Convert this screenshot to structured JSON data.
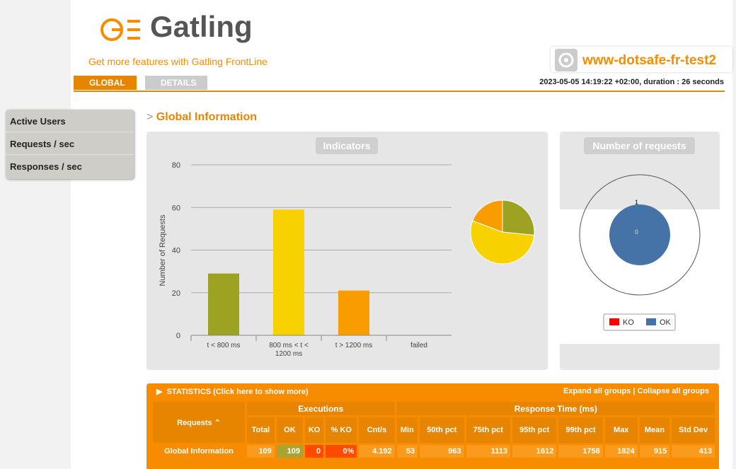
{
  "header": {
    "logo": "Gatling",
    "promo": "Get more features with Gatling FrontLine",
    "simulation": "www-dotsafe-fr-test2",
    "run_info": "2023-05-05 14:19:22 +02:00, duration : 26 seconds"
  },
  "tabs": [
    "GLOBAL",
    "DETAILS"
  ],
  "sidebar": [
    "Active Users",
    "Requests / sec",
    "Responses / sec"
  ],
  "section_title": "Global Information",
  "chart_data": {
    "type": "bar",
    "title": "Indicators",
    "y_label": "Number of Requests",
    "categories": [
      "t < 800 ms",
      "800 ms < t < 1200 ms",
      "t > 1200 ms",
      "failed"
    ],
    "values": [
      29,
      59,
      21,
      0
    ],
    "colors": [
      "#9ea223",
      "#f7d100",
      "#f99c00",
      "#e62e00"
    ],
    "ylim": [
      0,
      80
    ],
    "yticks": [
      0,
      20,
      40,
      60,
      80
    ],
    "grid": true
  },
  "requests_panel": {
    "title": "Number of requests",
    "gauge_labels": [
      "1",
      "0"
    ],
    "legend": [
      {
        "name": "KO",
        "color": "#ff0000"
      },
      {
        "name": "OK",
        "color": "#4572a7"
      }
    ]
  },
  "statistics": {
    "title": "STATISTICS (Click here to show more)",
    "links": "Expand all groups | Collapse all groups",
    "groups": [
      "Executions",
      "Response Time (ms)"
    ],
    "requests_header": "Requests",
    "columns": [
      "Total",
      "OK",
      "KO",
      "% KO",
      "Cnt/s",
      "Min",
      "50th pct",
      "75th pct",
      "95th pct",
      "99th pct",
      "Max",
      "Mean",
      "Std Dev"
    ],
    "rows": [
      [
        "Global Information",
        "109",
        "109",
        "0",
        "0%",
        "4.192",
        "53",
        "963",
        "1113",
        "1612",
        "1758",
        "1824",
        "915",
        "413"
      ]
    ]
  }
}
